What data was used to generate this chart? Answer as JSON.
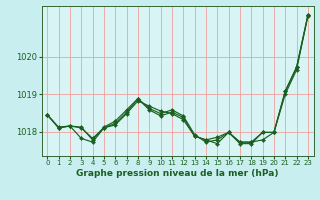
{
  "title": "Graphe pression niveau de la mer (hPa)",
  "bg_color": "#c8eef0",
  "plot_bg_color": "#d8f4f4",
  "grid_color": "#f0a0a0",
  "line_color": "#1a6020",
  "marker_color": "#1a6020",
  "xlim": [
    -0.5,
    23.5
  ],
  "ylim": [
    1017.35,
    1021.35
  ],
  "yticks": [
    1018,
    1019,
    1020
  ],
  "xtick_labels": [
    "0",
    "1",
    "2",
    "3",
    "4",
    "5",
    "6",
    "7",
    "8",
    "9",
    "10",
    "11",
    "12",
    "13",
    "14",
    "15",
    "16",
    "17",
    "18",
    "19",
    "20",
    "21",
    "22",
    "23"
  ],
  "series": [
    [
      1018.45,
      1018.1,
      1018.15,
      1017.82,
      1017.72,
      1018.1,
      1018.18,
      1018.48,
      1018.82,
      1018.68,
      1018.55,
      1018.48,
      1018.32,
      1017.88,
      1017.78,
      1017.68,
      1017.98,
      1017.72,
      1017.72,
      1017.78,
      1017.98,
      1019.0,
      1019.65,
      1021.1
    ],
    [
      1018.45,
      1018.12,
      1018.15,
      1018.12,
      1017.78,
      1018.12,
      1018.28,
      1018.58,
      1018.88,
      1018.58,
      1018.42,
      1018.52,
      1018.38,
      1017.88,
      1017.78,
      1017.85,
      1017.98,
      1017.68,
      1017.68,
      1017.98,
      1017.98,
      1019.08,
      1019.72,
      1021.12
    ],
    [
      1018.45,
      1018.1,
      1018.15,
      1018.1,
      1017.82,
      1018.1,
      1018.22,
      1018.52,
      1018.88,
      1018.62,
      1018.48,
      1018.58,
      1018.42,
      1017.92,
      1017.72,
      1017.78,
      1017.98,
      1017.72,
      1017.72,
      1017.98,
      1017.98,
      1019.08,
      1019.72,
      1021.08
    ]
  ]
}
